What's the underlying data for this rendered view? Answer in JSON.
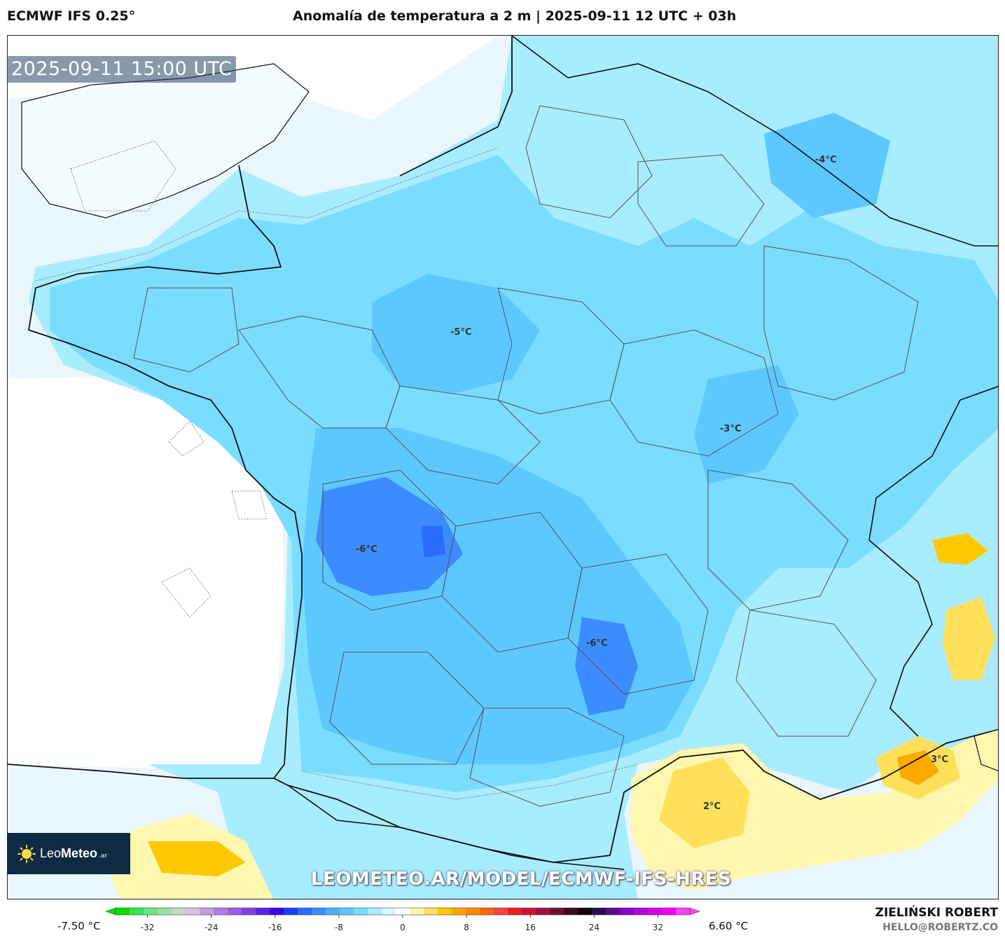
{
  "header": {
    "model": "ECMWF IFS 0.25°",
    "title": "Anomalía de temperatura a 2 m | 2025-09-11 12 UTC + 03h"
  },
  "map": {
    "valid_time": "2025-09-11 15:00 UTC",
    "contour_labels": [
      {
        "text": "-4°C",
        "id": "label-minus4"
      },
      {
        "text": "-5°C",
        "id": "label-minus5"
      },
      {
        "text": "-3°C",
        "id": "label-minus3"
      },
      {
        "text": "-6°C",
        "id": "label-minus6-west"
      },
      {
        "text": "-6°C",
        "id": "label-minus6-south"
      },
      {
        "text": "3°C",
        "id": "label-plus3"
      },
      {
        "text": "2°C",
        "id": "label-plus2"
      }
    ],
    "watermark_url": "LEOMETEO.AR/MODEL/ECMWF-IFS-HRES",
    "logo": {
      "brand_light": "Leo",
      "brand_bold": "Meteo",
      "tld": ".ar"
    }
  },
  "colorbar": {
    "min_label": "-7.50 °C",
    "max_label": "6.60 °C",
    "ticks": [
      "-32",
      "-24",
      "-16",
      "-8",
      "0",
      "8",
      "16",
      "24",
      "32"
    ],
    "colors": [
      "#00e000",
      "#33e64d",
      "#66e680",
      "#99e0a6",
      "#c3d9c3",
      "#d4c0e6",
      "#c39ae6",
      "#b57ae6",
      "#9d5ae6",
      "#8040e6",
      "#6020e6",
      "#3c00f0",
      "#1840ff",
      "#2a6cff",
      "#3c8cff",
      "#4caeff",
      "#5cc8ff",
      "#7adcff",
      "#a8ecff",
      "#d7f6ff",
      "#ffffff",
      "#fff6b0",
      "#ffe05a",
      "#ffc800",
      "#ffa800",
      "#ff8a00",
      "#ff6a00",
      "#ff4040",
      "#f01c1c",
      "#c8143c",
      "#a01040",
      "#701030",
      "#400820",
      "#100000",
      "#2a0a50",
      "#5a0a90",
      "#8a00c8",
      "#b400e0",
      "#d600ef",
      "#ee00f6",
      "#ff40ff"
    ]
  },
  "footer": {
    "author": "ZIELIŃSKI ROBERT",
    "email": "HELLO@ROBERTZ.CO"
  }
}
